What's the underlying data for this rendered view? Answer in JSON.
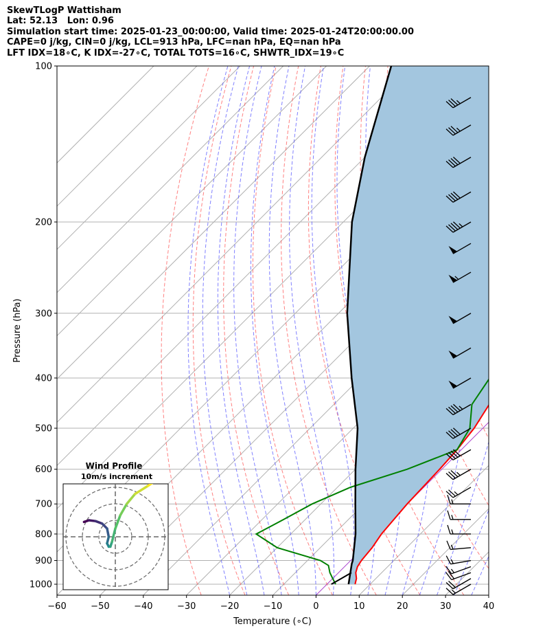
{
  "header": {
    "line1": "SkewTLogP Wattisham",
    "line2": "Lat: 52.13   Lon: 0.96",
    "line3": "Simulation start time: 2025-01-23_00:00:00, Valid time: 2025-01-24T20:00:00.00",
    "line4": "CAPE=0 j/kg, CIN=0 j/kg, LCL=913 hPa, LFC=nan hPa, EQ=nan hPa",
    "line5": "LFT IDX=18∘C, K IDX=-27∘C, TOTAL TOTS=16∘C, SHWTR_IDX=19∘C"
  },
  "inset": {
    "title": "Wind Profile",
    "subtitle": "10m/s increment"
  },
  "colors": {
    "temperature": "#ff0000",
    "dewpoint": "#008000",
    "parcel": "#000000",
    "cape_fill": "#a3c6df",
    "dry_adiabats": "#ff5555",
    "moist_adiabats": "#5555ff",
    "mixing_ratio": "#999999",
    "isotherm_zero": "#aa44cc"
  },
  "chart_data": {
    "type": "line",
    "xlabel": "Temperature (∘C)",
    "ylabel": "Pressure (hPa)",
    "xlim": [
      -60,
      40
    ],
    "ylim": [
      1050,
      100
    ],
    "y_scale": "log",
    "skew": true,
    "grid": true,
    "x_ticks": [
      "−60",
      "−50",
      "−40",
      "−30",
      "−20",
      "−10",
      "0",
      "10",
      "20",
      "30",
      "40"
    ],
    "y_ticks": [
      "100",
      "200",
      "300",
      "400",
      "500",
      "600",
      "700",
      "800",
      "900",
      "1000"
    ],
    "series": [
      {
        "key": "temperature",
        "points": [
          [
            1000,
            6.5
          ],
          [
            975,
            5.5
          ],
          [
            950,
            4
          ],
          [
            925,
            3
          ],
          [
            900,
            2.5
          ],
          [
            850,
            2
          ],
          [
            800,
            1
          ],
          [
            700,
            0
          ],
          [
            600,
            -0.5
          ],
          [
            550,
            -1
          ],
          [
            500,
            -2
          ],
          [
            450,
            -4
          ],
          [
            400,
            -7
          ],
          [
            350,
            -11
          ],
          [
            300,
            -18
          ],
          [
            270,
            -22
          ],
          [
            250,
            -26
          ],
          [
            230,
            -32
          ],
          [
            215,
            -34
          ],
          [
            200,
            -33
          ],
          [
            180,
            -31
          ],
          [
            160,
            -30
          ],
          [
            140,
            -29
          ],
          [
            120,
            -28
          ],
          [
            100,
            -27
          ]
        ]
      },
      {
        "key": "dewpoint",
        "points": [
          [
            1000,
            2
          ],
          [
            975,
            0
          ],
          [
            950,
            -2
          ],
          [
            920,
            -4
          ],
          [
            900,
            -7
          ],
          [
            850,
            -20
          ],
          [
            800,
            -28
          ],
          [
            750,
            -25
          ],
          [
            700,
            -22
          ],
          [
            650,
            -17
          ],
          [
            600,
            -8
          ],
          [
            550,
            -1
          ],
          [
            500,
            -3
          ],
          [
            450,
            -8
          ],
          [
            400,
            -10
          ],
          [
            350,
            -16
          ],
          [
            300,
            -23
          ],
          [
            250,
            -31
          ],
          [
            230,
            -36
          ],
          [
            210,
            -39
          ],
          [
            200,
            -40
          ],
          [
            180,
            -42
          ],
          [
            160,
            -48
          ],
          [
            140,
            -54
          ],
          [
            120,
            -58
          ],
          [
            100,
            -60
          ]
        ]
      },
      {
        "key": "parcel",
        "points": [
          [
            1000,
            5
          ],
          [
            913,
            1
          ],
          [
            900,
            0.5
          ],
          [
            800,
            -5
          ],
          [
            700,
            -12
          ],
          [
            600,
            -20
          ],
          [
            500,
            -29
          ],
          [
            400,
            -42
          ],
          [
            300,
            -58
          ],
          [
            250,
            -67
          ],
          [
            200,
            -78
          ],
          [
            150,
            -90
          ],
          [
            100,
            -105
          ]
        ]
      }
    ],
    "surface_segment": [
      [
        1000,
        1.0
      ],
      [
        975,
        2.0
      ],
      [
        950,
        3.0
      ]
    ],
    "wind_barbs": [
      {
        "p": 1000,
        "speed_kt": 15,
        "dir_deg": 240
      },
      {
        "p": 975,
        "speed_kt": 20,
        "dir_deg": 240
      },
      {
        "p": 950,
        "speed_kt": 20,
        "dir_deg": 250
      },
      {
        "p": 925,
        "speed_kt": 15,
        "dir_deg": 250
      },
      {
        "p": 900,
        "speed_kt": 15,
        "dir_deg": 260
      },
      {
        "p": 850,
        "speed_kt": 15,
        "dir_deg": 265
      },
      {
        "p": 800,
        "speed_kt": 15,
        "dir_deg": 270
      },
      {
        "p": 750,
        "speed_kt": 15,
        "dir_deg": 270
      },
      {
        "p": 700,
        "speed_kt": 15,
        "dir_deg": 270
      },
      {
        "p": 650,
        "speed_kt": 25,
        "dir_deg": 240
      },
      {
        "p": 600,
        "speed_kt": 35,
        "dir_deg": 240
      },
      {
        "p": 550,
        "speed_kt": 40,
        "dir_deg": 240
      },
      {
        "p": 500,
        "speed_kt": 40,
        "dir_deg": 240
      },
      {
        "p": 450,
        "speed_kt": 45,
        "dir_deg": 240
      },
      {
        "p": 400,
        "speed_kt": 50,
        "dir_deg": 240
      },
      {
        "p": 350,
        "speed_kt": 50,
        "dir_deg": 240
      },
      {
        "p": 300,
        "speed_kt": 50,
        "dir_deg": 240
      },
      {
        "p": 250,
        "speed_kt": 55,
        "dir_deg": 240
      },
      {
        "p": 220,
        "speed_kt": 50,
        "dir_deg": 240
      },
      {
        "p": 200,
        "speed_kt": 45,
        "dir_deg": 240
      },
      {
        "p": 175,
        "speed_kt": 40,
        "dir_deg": 240
      },
      {
        "p": 150,
        "speed_kt": 40,
        "dir_deg": 240
      },
      {
        "p": 130,
        "speed_kt": 35,
        "dir_deg": 240
      },
      {
        "p": 115,
        "speed_kt": 35,
        "dir_deg": 240
      }
    ],
    "hodograph": {
      "rings_ms": [
        10,
        20,
        30
      ],
      "u": [
        -19,
        -16,
        -12,
        -8,
        -5,
        -4,
        -5,
        -4,
        -3,
        -2,
        0,
        3,
        7,
        12,
        20,
        26
      ],
      "v": [
        9,
        10,
        9.5,
        8,
        5,
        0,
        -4,
        -6,
        -6,
        -3,
        5,
        13,
        20,
        26,
        31,
        35
      ]
    }
  }
}
